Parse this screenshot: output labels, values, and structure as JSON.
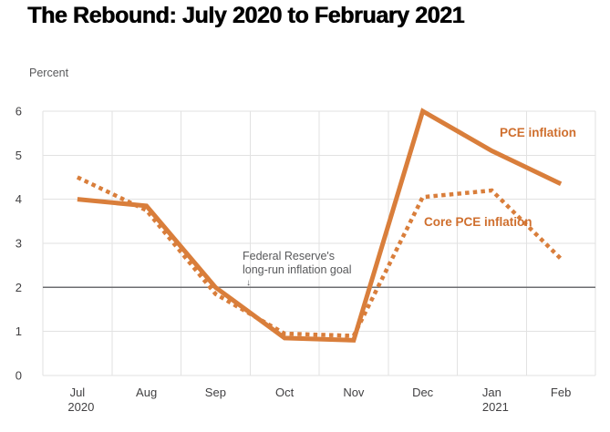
{
  "title": "The Rebound: July 2020 to February 2021",
  "axis_unit_label": "Percent",
  "annotation": {
    "line1": "Federal Reserve's",
    "line2": "long-run inflation goal",
    "arrow_glyph": "↓"
  },
  "chart_data": {
    "type": "line",
    "title": "The Rebound: July 2020 to February 2021",
    "xlabel": "",
    "ylabel": "Percent",
    "ylim": [
      0,
      6
    ],
    "yticks": [
      0,
      1,
      2,
      3,
      4,
      5,
      6
    ],
    "grid": true,
    "legend_position": "inline-labels",
    "categories": [
      "Jul",
      "Aug",
      "Sep",
      "Oct",
      "Nov",
      "Dec",
      "Jan",
      "Feb"
    ],
    "category_sublabels": [
      {
        "index": 0,
        "label": "2020"
      },
      {
        "index": 6,
        "label": "2021"
      }
    ],
    "series": [
      {
        "name": "PCE inflation",
        "line_style": "solid",
        "color": "#d97e3b",
        "values": [
          4.0,
          3.85,
          2.0,
          0.85,
          0.8,
          6.0,
          5.1,
          4.35
        ]
      },
      {
        "name": "Core PCE inflation",
        "line_style": "dotted",
        "color": "#d97e3b",
        "values": [
          4.5,
          3.75,
          1.85,
          0.95,
          0.9,
          4.05,
          4.2,
          2.65
        ]
      }
    ],
    "reference_line": {
      "value": 2,
      "label": "Federal Reserve's long-run inflation goal"
    }
  },
  "colors": {
    "accent_orange": "#d97e3b",
    "label_orange": "#cf6f2e",
    "grid": "#e2e2e2",
    "reference_line": "#6d6e71",
    "tick_text": "#414042",
    "muted_text": "#58595b",
    "title_text": "#000000",
    "background": "#ffffff"
  }
}
